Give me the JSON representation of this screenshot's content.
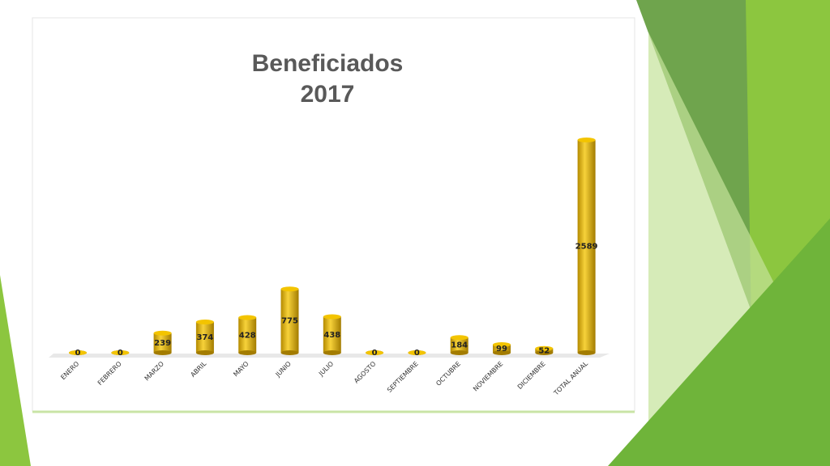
{
  "chart_data": {
    "type": "bar",
    "title": "Beneficiados 2017",
    "categories": [
      "ENERO",
      "FEBRERO",
      "MARZO",
      "ABRIL",
      "MAYO",
      "JUNIO",
      "JULIO",
      "AGOSTO",
      "SEPTIEMBRE",
      "OCTUBRE",
      "NOVIEMBRE",
      "DICIEMBRE",
      "TOTAL ANUAL"
    ],
    "values": [
      0,
      0,
      239,
      374,
      428,
      775,
      438,
      0,
      0,
      184,
      99,
      52,
      2589
    ],
    "color": "#e8b800"
  }
}
